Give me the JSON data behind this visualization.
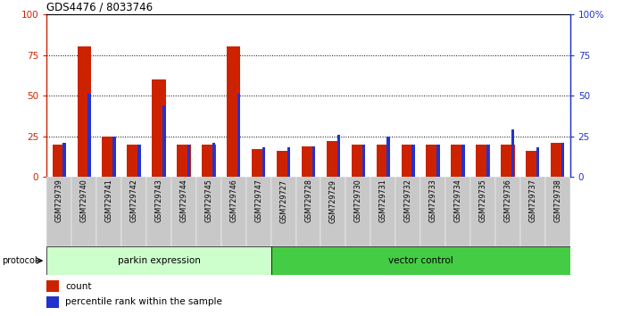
{
  "title": "GDS4476 / 8033746",
  "samples": [
    "GSM729739",
    "GSM729740",
    "GSM729741",
    "GSM729742",
    "GSM729743",
    "GSM729744",
    "GSM729745",
    "GSM729746",
    "GSM729747",
    "GSM729727",
    "GSM729728",
    "GSM729729",
    "GSM729730",
    "GSM729731",
    "GSM729732",
    "GSM729733",
    "GSM729734",
    "GSM729735",
    "GSM729736",
    "GSM729737",
    "GSM729738"
  ],
  "count_values": [
    20,
    80,
    25,
    20,
    60,
    20,
    20,
    80,
    17,
    16,
    19,
    22,
    20,
    20,
    20,
    20,
    20,
    20,
    20,
    16,
    21
  ],
  "percentile_values": [
    21,
    51,
    25,
    20,
    44,
    20,
    21,
    51,
    18,
    18,
    19,
    26,
    20,
    25,
    20,
    20,
    20,
    20,
    29,
    18,
    21
  ],
  "parkin_count": 9,
  "vector_count": 12,
  "parkin_label": "parkin expression",
  "vector_label": "vector control",
  "protocol_label": "protocol",
  "count_color": "#cc2200",
  "percentile_color": "#2233cc",
  "parkin_bg": "#ccffcc",
  "vector_bg": "#44cc44",
  "bar_bg": "#c8c8c8",
  "yticks_left": [
    0,
    25,
    50,
    75,
    100
  ],
  "yticks_right": [
    "0",
    "25",
    "50",
    "75",
    "100%"
  ],
  "ylim": [
    0,
    100
  ],
  "red_bar_width": 0.55,
  "blue_bar_width": 0.12
}
